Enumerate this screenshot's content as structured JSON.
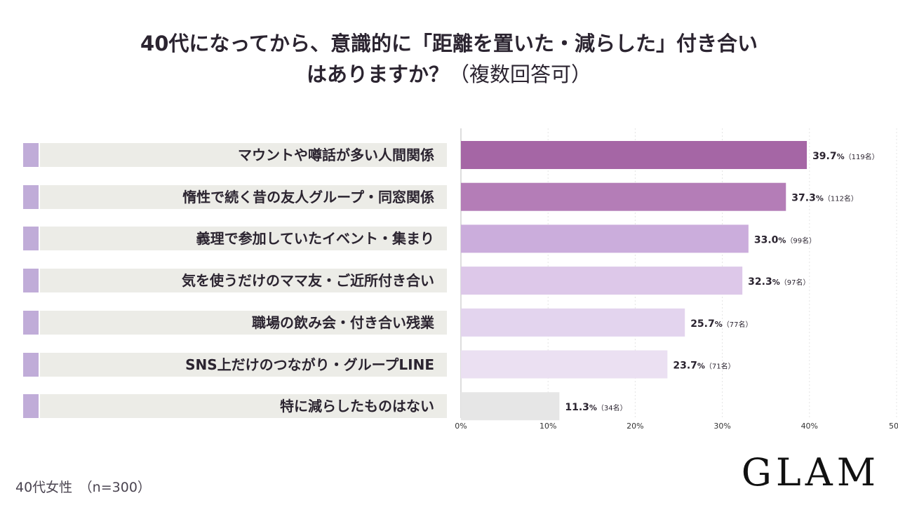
{
  "title_line1": "40代になってから、意識的に「距離を置いた・減らした」付き合い",
  "title_line2_main": "はありますか？",
  "title_line2_paren": "（複数回答可）",
  "footer_note": "40代女性　（n=300）",
  "brand": "GLAM",
  "colors": {
    "bars": [
      "#a566a5",
      "#b47db7",
      "#cbaddc",
      "#ddc8e9",
      "#e3d4ee",
      "#ebe0f2",
      "#e6e6e6"
    ],
    "label_tick": "#c0acd8",
    "label_panel": "#ecece7",
    "grid": "#e4e4e4",
    "axis": "#bbbbbb"
  },
  "chart_data": {
    "type": "bar",
    "orientation": "horizontal",
    "categories": [
      "マウントや噂話が多い人間関係",
      "惰性で続く昔の友人グループ・同窓関係",
      "義理で参加していたイベント・集まり",
      "気を使うだけのママ友・ご近所付き合い",
      "職場の飲み会・付き合い残業",
      "SNS上だけのつながり・グループLINE",
      "特に減らしたものはない"
    ],
    "values": [
      39.7,
      37.3,
      33.0,
      32.3,
      25.7,
      23.7,
      11.3
    ],
    "counts": [
      "（119名）",
      "（112名）",
      "（99名）",
      "（97名）",
      "（77名）",
      "（71名）",
      "（34名）"
    ],
    "value_labels": [
      "39.7",
      "37.3",
      "33.0",
      "32.3",
      "25.7",
      "23.7",
      "11.3"
    ],
    "value_unit": "%",
    "xlim": [
      0,
      50
    ],
    "x_ticks": [
      "0%",
      "10%",
      "20%",
      "30%",
      "40%",
      "50"
    ],
    "grid": true
  }
}
